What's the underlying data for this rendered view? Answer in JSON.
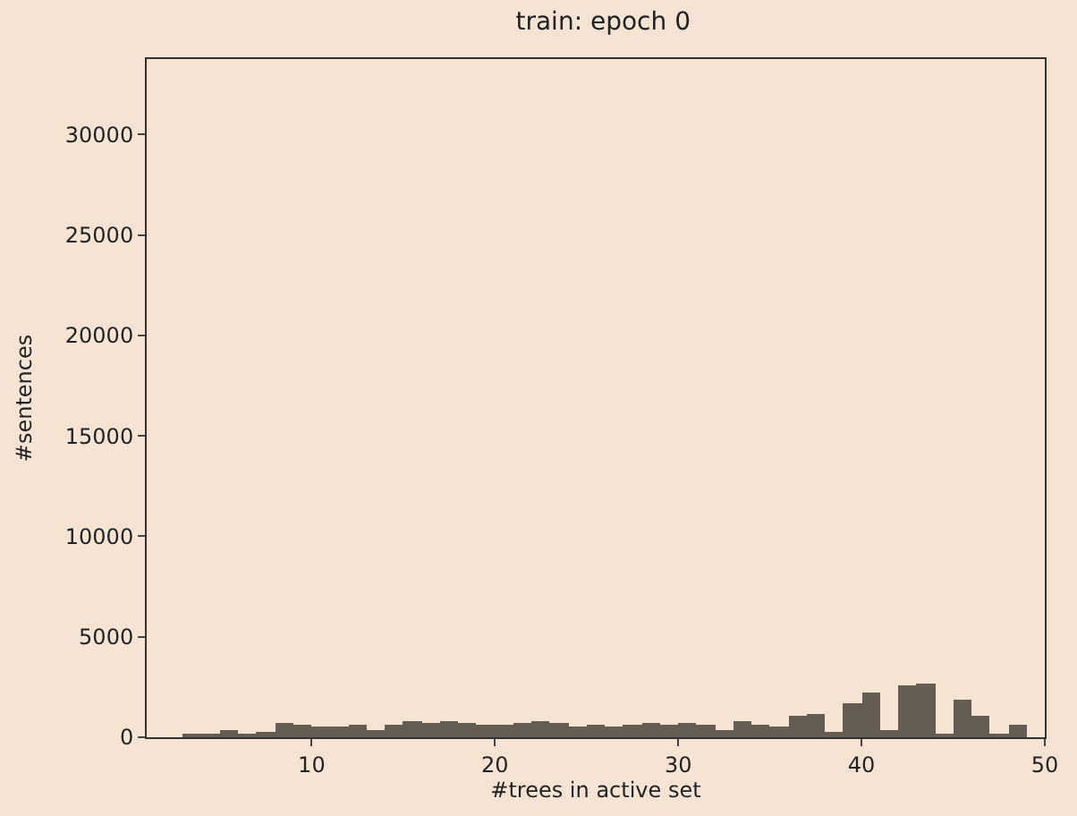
{
  "chart_data": {
    "type": "histogram",
    "title": "train: epoch 0",
    "xlabel": "#trees in active set",
    "ylabel": "#sentences",
    "bins": [
      3,
      4,
      5,
      6,
      7,
      8,
      9,
      10,
      11,
      12,
      13,
      14,
      15,
      16,
      17,
      18,
      19,
      20,
      21,
      22,
      23,
      24,
      25,
      26,
      27,
      28,
      29,
      30,
      31,
      32,
      33,
      34,
      35,
      36,
      37,
      38,
      39,
      40,
      41,
      42,
      43,
      44,
      45,
      46,
      47,
      48,
      49
    ],
    "values": [
      100,
      200,
      400,
      200,
      300,
      700,
      600,
      500,
      500,
      600,
      400,
      600,
      800,
      700,
      800,
      700,
      600,
      600,
      700,
      800,
      700,
      500,
      600,
      500,
      600,
      700,
      600,
      700,
      600,
      400,
      800,
      600,
      500,
      1100,
      1200,
      300,
      1700,
      2200,
      400,
      2600,
      2700,
      200,
      1900,
      1100,
      100,
      600
    ],
    "color": "#655c52",
    "xlim": [
      1,
      50
    ],
    "xticks": [
      10,
      20,
      30,
      40,
      50
    ],
    "ylim": [
      0,
      33750
    ],
    "yticks": [
      0,
      5000,
      10000,
      15000,
      20000,
      25000,
      30000
    ],
    "grid": false
  }
}
